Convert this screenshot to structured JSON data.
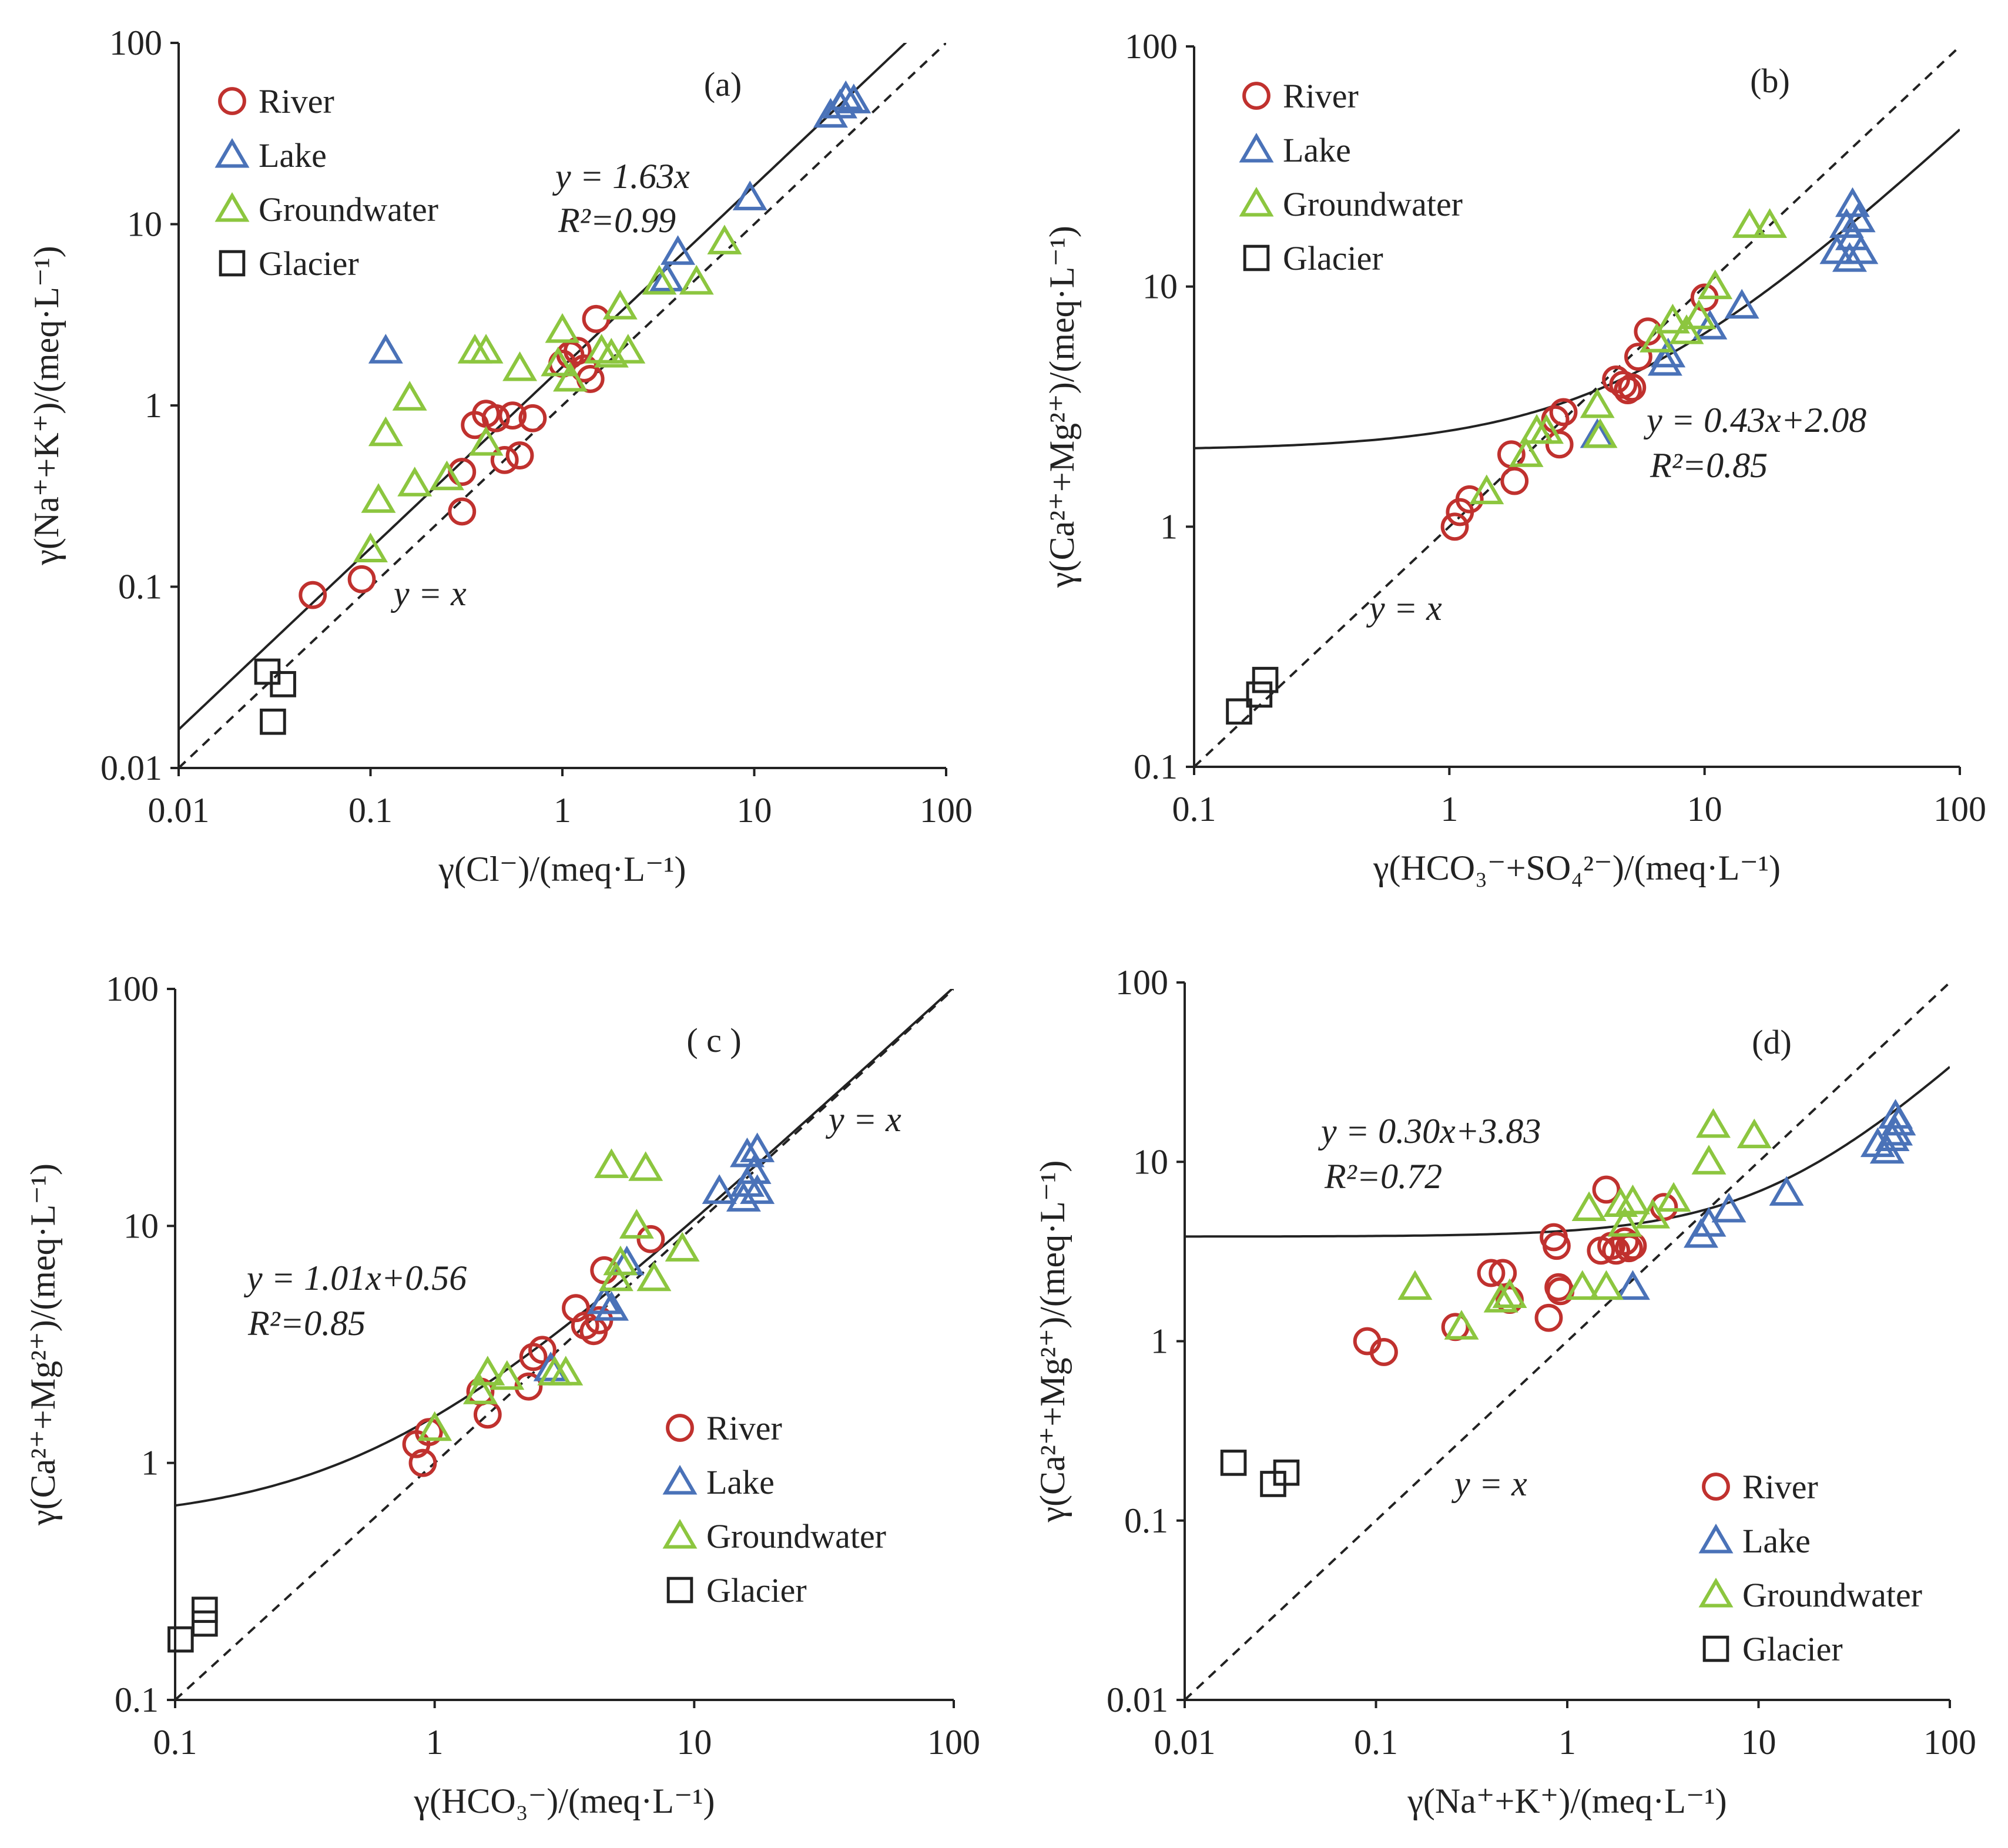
{
  "colors": {
    "River": "#c0312e",
    "Lake": "#4a72b8",
    "Groundwater": "#8cc63f",
    "Glacier": "#222222",
    "axis": "#222222"
  },
  "chart_data": [
    {
      "type": "scatter",
      "panel_label": "(a)",
      "scale": "log-log",
      "xlabel": "γ(Cl⁻)/(meq·L⁻¹)",
      "ylabel": "γ(Na⁺+K⁺)/(meq·L⁻¹)",
      "xlim": [
        0.01,
        100
      ],
      "ylim": [
        0.01,
        100
      ],
      "xticks": [
        "0.01",
        "0.1",
        "1",
        "10",
        "100"
      ],
      "yticks": [
        "0.01",
        "0.1",
        "1",
        "10",
        "100"
      ],
      "legend_position": "top-left",
      "legend": [
        "River",
        "Lake",
        "Groundwater",
        "Glacier"
      ],
      "equation": "y = 1.63x",
      "r2": "R²=0.99",
      "identity_label": "y = x",
      "fit": {
        "slope": 1.63,
        "intercept": 0
      },
      "series": [
        {
          "name": "River",
          "marker": "circle",
          "points": [
            [
              0.05,
              0.09
            ],
            [
              0.09,
              0.11
            ],
            [
              0.3,
              0.26
            ],
            [
              0.3,
              0.43
            ],
            [
              0.35,
              0.78
            ],
            [
              0.4,
              0.9
            ],
            [
              0.45,
              0.85
            ],
            [
              0.5,
              0.5
            ],
            [
              0.55,
              0.88
            ],
            [
              0.6,
              0.53
            ],
            [
              0.7,
              0.85
            ],
            [
              1.0,
              1.7
            ],
            [
              1.1,
              1.9
            ],
            [
              1.2,
              2.0
            ],
            [
              1.3,
              1.6
            ],
            [
              1.4,
              1.4
            ],
            [
              1.5,
              3.0
            ]
          ]
        },
        {
          "name": "Lake",
          "marker": "triangle",
          "points": [
            [
              0.12,
              2.0
            ],
            [
              3.5,
              5.0
            ],
            [
              4.0,
              7.0
            ],
            [
              9.5,
              14
            ],
            [
              25,
              40
            ],
            [
              28,
              45
            ],
            [
              30,
              50
            ],
            [
              33,
              48
            ]
          ]
        },
        {
          "name": "Groundwater",
          "marker": "triangle",
          "points": [
            [
              0.1,
              0.16
            ],
            [
              0.11,
              0.3
            ],
            [
              0.12,
              0.7
            ],
            [
              0.16,
              1.1
            ],
            [
              0.17,
              0.37
            ],
            [
              0.25,
              0.4
            ],
            [
              0.35,
              2.0
            ],
            [
              0.4,
              2.0
            ],
            [
              0.4,
              0.62
            ],
            [
              0.6,
              1.6
            ],
            [
              0.95,
              1.7
            ],
            [
              1.0,
              2.6
            ],
            [
              1.1,
              1.4
            ],
            [
              1.6,
              2.0
            ],
            [
              1.8,
              1.9
            ],
            [
              2.0,
              3.5
            ],
            [
              2.2,
              2.0
            ],
            [
              3.2,
              4.8
            ],
            [
              5.0,
              4.8
            ],
            [
              7.0,
              8.0
            ]
          ]
        },
        {
          "name": "Glacier",
          "marker": "square",
          "points": [
            [
              0.029,
              0.034
            ],
            [
              0.035,
              0.029
            ],
            [
              0.031,
              0.018
            ]
          ]
        }
      ]
    },
    {
      "type": "scatter",
      "panel_label": "(b)",
      "scale": "log-log",
      "xlabel": "γ(HCO₃⁻+SO₄²⁻)/(meq·L⁻¹)",
      "ylabel": "γ(Ca²⁺+Mg²⁺)/(meq·L⁻¹)",
      "xlim": [
        0.1,
        100
      ],
      "ylim": [
        0.1,
        100
      ],
      "xticks": [
        "0.1",
        "1",
        "10",
        "100"
      ],
      "yticks": [
        "0.1",
        "1",
        "10",
        "100"
      ],
      "legend_position": "top-left",
      "legend": [
        "River",
        "Lake",
        "Groundwater",
        "Glacier"
      ],
      "equation": "y = 0.43x+2.08",
      "r2": "R²=0.85",
      "identity_label": "y = x",
      "fit": {
        "slope": 0.43,
        "intercept": 2.08
      },
      "series": [
        {
          "name": "River",
          "marker": "circle",
          "points": [
            [
              1.05,
              1.0
            ],
            [
              1.1,
              1.15
            ],
            [
              1.2,
              1.3
            ],
            [
              1.75,
              2.0
            ],
            [
              1.8,
              1.55
            ],
            [
              2.6,
              2.8
            ],
            [
              2.7,
              2.2
            ],
            [
              2.8,
              3.0
            ],
            [
              4.5,
              4.1
            ],
            [
              4.8,
              3.9
            ],
            [
              5.0,
              3.7
            ],
            [
              5.2,
              3.8
            ],
            [
              5.5,
              5.1
            ],
            [
              6.0,
              6.5
            ],
            [
              10.0,
              9.0
            ]
          ]
        },
        {
          "name": "Lake",
          "marker": "triangle",
          "points": [
            [
              3.8,
              2.4
            ],
            [
              7.0,
              4.8
            ],
            [
              7.2,
              5.2
            ],
            [
              10.5,
              6.8
            ],
            [
              14,
              8.3
            ],
            [
              33,
              14
            ],
            [
              36,
              18
            ],
            [
              37,
              13
            ],
            [
              38,
              16
            ],
            [
              38,
              22
            ],
            [
              40,
              19
            ],
            [
              41,
              14
            ]
          ]
        },
        {
          "name": "Groundwater",
          "marker": "triangle",
          "points": [
            [
              1.4,
              1.4
            ],
            [
              2.0,
              2.0
            ],
            [
              2.2,
              2.5
            ],
            [
              2.4,
              2.5
            ],
            [
              3.8,
              3.2
            ],
            [
              3.9,
              2.4
            ],
            [
              6.5,
              6.0
            ],
            [
              7.5,
              7.2
            ],
            [
              8.5,
              6.5
            ],
            [
              9.5,
              7.5
            ],
            [
              11,
              10
            ],
            [
              15,
              18
            ],
            [
              18,
              18
            ]
          ]
        },
        {
          "name": "Glacier",
          "marker": "square",
          "points": [
            [
              0.15,
              0.17
            ],
            [
              0.18,
              0.2
            ],
            [
              0.19,
              0.23
            ]
          ]
        }
      ]
    },
    {
      "type": "scatter",
      "panel_label": "( c )",
      "scale": "log-log",
      "xlabel": "γ(HCO₃⁻)/(meq·L⁻¹)",
      "ylabel": "γ(Ca²⁺+Mg²⁺)/(meq·L⁻¹)",
      "xlim": [
        0.1,
        100
      ],
      "ylim": [
        0.1,
        100
      ],
      "xticks": [
        "0.1",
        "1",
        "10",
        "100"
      ],
      "yticks": [
        "0.1",
        "1",
        "10",
        "100"
      ],
      "legend_position": "bottom-right",
      "legend": [
        "River",
        "Lake",
        "Groundwater",
        "Glacier"
      ],
      "equation": "y = 1.01x+0.56",
      "r2": "R²=0.85",
      "identity_label": "y = x",
      "fit": {
        "slope": 1.01,
        "intercept": 0.56
      },
      "series": [
        {
          "name": "River",
          "marker": "circle",
          "points": [
            [
              0.85,
              1.2
            ],
            [
              0.9,
              1.0
            ],
            [
              0.95,
              1.35
            ],
            [
              1.5,
              2.0
            ],
            [
              1.6,
              1.6
            ],
            [
              2.3,
              2.1
            ],
            [
              2.4,
              2.8
            ],
            [
              2.6,
              3.0
            ],
            [
              3.5,
              4.5
            ],
            [
              3.8,
              3.8
            ],
            [
              4.1,
              3.6
            ],
            [
              4.3,
              4.0
            ],
            [
              4.5,
              6.5
            ],
            [
              6.8,
              8.8
            ]
          ]
        },
        {
          "name": "Lake",
          "marker": "triangle",
          "points": [
            [
              2.8,
              2.5
            ],
            [
              4.5,
              4.8
            ],
            [
              4.8,
              4.5
            ],
            [
              5.5,
              7.0
            ],
            [
              12.5,
              14
            ],
            [
              15.5,
              13
            ],
            [
              16,
              15
            ],
            [
              16,
              20
            ],
            [
              17,
              17
            ],
            [
              17.5,
              14
            ],
            [
              17.5,
              21
            ]
          ]
        },
        {
          "name": "Groundwater",
          "marker": "triangle",
          "points": [
            [
              1.0,
              1.4
            ],
            [
              1.5,
              2.0
            ],
            [
              1.6,
              2.4
            ],
            [
              1.9,
              2.3
            ],
            [
              2.9,
              2.4
            ],
            [
              3.2,
              2.4
            ],
            [
              4.8,
              18
            ],
            [
              5.0,
              6.0
            ],
            [
              5.2,
              7.0
            ],
            [
              6.0,
              10
            ],
            [
              6.5,
              17.5
            ],
            [
              7.0,
              6.0
            ],
            [
              9.0,
              8.0
            ]
          ]
        },
        {
          "name": "Glacier",
          "marker": "square",
          "points": [
            [
              0.105,
              0.18
            ],
            [
              0.13,
              0.21
            ],
            [
              0.13,
              0.24
            ]
          ]
        }
      ]
    },
    {
      "type": "scatter",
      "panel_label": "(d)",
      "scale": "log-log",
      "xlabel": "γ(Na⁺+K⁺)/(meq·L⁻¹)",
      "ylabel": "γ(Ca²⁺+Mg²⁺)/(meq·L⁻¹)",
      "xlim": [
        0.01,
        100
      ],
      "ylim": [
        0.01,
        100
      ],
      "xticks": [
        "0.01",
        "0.1",
        "1",
        "10",
        "100"
      ],
      "yticks": [
        "0.01",
        "0.1",
        "1",
        "10",
        "100"
      ],
      "legend_position": "bottom-right",
      "legend": [
        "River",
        "Lake",
        "Groundwater",
        "Glacier"
      ],
      "equation": "y = 0.30x+3.83",
      "r2": "R²=0.72",
      "identity_label": "y = x",
      "fit": {
        "slope": 0.3,
        "intercept": 3.83
      },
      "series": [
        {
          "name": "River",
          "marker": "circle",
          "points": [
            [
              0.09,
              1.0
            ],
            [
              0.11,
              0.87
            ],
            [
              0.26,
              1.2
            ],
            [
              0.4,
              2.4
            ],
            [
              0.46,
              2.4
            ],
            [
              0.5,
              1.7
            ],
            [
              0.8,
              1.35
            ],
            [
              0.85,
              3.8
            ],
            [
              0.88,
              3.4
            ],
            [
              0.9,
              2.0
            ],
            [
              0.92,
              1.9
            ],
            [
              1.5,
              3.2
            ],
            [
              1.6,
              7.0
            ],
            [
              1.7,
              3.4
            ],
            [
              1.8,
              3.2
            ],
            [
              2.0,
              3.6
            ],
            [
              2.1,
              3.3
            ],
            [
              2.2,
              3.4
            ],
            [
              3.2,
              5.6
            ]
          ]
        },
        {
          "name": "Lake",
          "marker": "triangle",
          "points": [
            [
              2.2,
              2.0
            ],
            [
              5.0,
              3.9
            ],
            [
              5.5,
              4.5
            ],
            [
              7.0,
              5.4
            ],
            [
              14,
              6.7
            ],
            [
              42,
              12.5
            ],
            [
              47,
              11.5
            ],
            [
              50,
              13.5
            ],
            [
              52,
              14.5
            ],
            [
              52,
              18
            ],
            [
              54,
              16.5
            ]
          ]
        },
        {
          "name": "Groundwater",
          "marker": "triangle",
          "points": [
            [
              0.16,
              2.0
            ],
            [
              0.28,
              1.2
            ],
            [
              0.45,
              1.7
            ],
            [
              0.5,
              1.8
            ],
            [
              1.2,
              2.0
            ],
            [
              1.3,
              5.5
            ],
            [
              1.6,
              2.0
            ],
            [
              1.9,
              5.8
            ],
            [
              2.0,
              4.5
            ],
            [
              2.2,
              6.0
            ],
            [
              2.8,
              5.0
            ],
            [
              3.6,
              6.2
            ],
            [
              5.5,
              10
            ],
            [
              5.8,
              16
            ],
            [
              9.5,
              14
            ]
          ]
        },
        {
          "name": "Glacier",
          "marker": "square",
          "points": [
            [
              0.018,
              0.21
            ],
            [
              0.029,
              0.16
            ],
            [
              0.034,
              0.185
            ]
          ]
        }
      ]
    }
  ]
}
